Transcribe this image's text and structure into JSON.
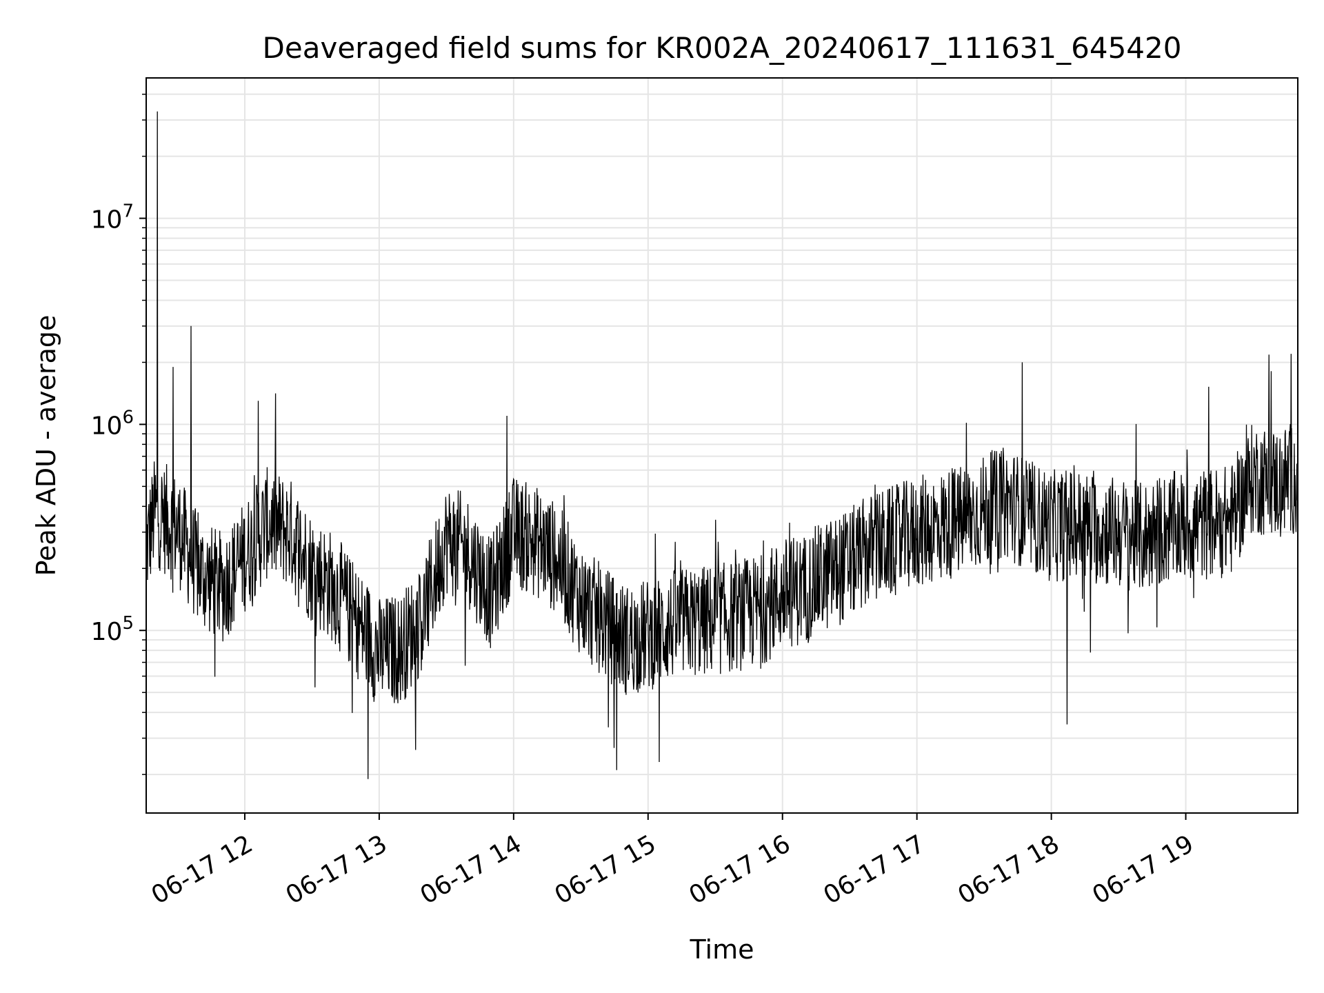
{
  "chart_data": {
    "type": "line",
    "title": "Deaveraged field sums for KR002A_20240617_111631_645420",
    "xlabel": "Time",
    "ylabel": "Peak ADU - average",
    "y_scale": "log",
    "grid": true,
    "xlim": [
      "2024-06-17 11:16",
      "2024-06-17 19:50"
    ],
    "ylim": [
      13000,
      48000000
    ],
    "x_ticks": [
      "06-17 12",
      "06-17 13",
      "06-17 14",
      "06-17 15",
      "06-17 16",
      "06-17 17",
      "06-17 18",
      "06-17 19"
    ],
    "x_tick_times": [
      "2024-06-17 12:00",
      "2024-06-17 13:00",
      "2024-06-17 14:00",
      "2024-06-17 15:00",
      "2024-06-17 16:00",
      "2024-06-17 17:00",
      "2024-06-17 18:00",
      "2024-06-17 19:00"
    ],
    "y_ticks": [
      100000,
      1000000,
      10000000
    ],
    "y_tick_labels": [
      {
        "base": "10",
        "exp": "5"
      },
      {
        "base": "10",
        "exp": "6"
      },
      {
        "base": "10",
        "exp": "7"
      }
    ],
    "line_color": "#000000",
    "grid_color": "#e5e5e5",
    "series": [
      {
        "x": [
          "2024-06-17 11:16",
          "2024-06-17 11:20",
          "2024-06-17 11:30",
          "2024-06-17 11:40",
          "2024-06-17 11:50",
          "2024-06-17 12:00",
          "2024-06-17 12:10",
          "2024-06-17 12:20",
          "2024-06-17 12:30",
          "2024-06-17 12:40",
          "2024-06-17 12:50",
          "2024-06-17 13:00",
          "2024-06-17 13:10",
          "2024-06-17 13:20",
          "2024-06-17 13:30",
          "2024-06-17 13:40",
          "2024-06-17 13:50",
          "2024-06-17 14:00",
          "2024-06-17 14:10",
          "2024-06-17 14:20",
          "2024-06-17 14:30",
          "2024-06-17 14:40",
          "2024-06-17 14:50",
          "2024-06-17 15:00",
          "2024-06-17 15:10",
          "2024-06-17 15:20",
          "2024-06-17 15:30",
          "2024-06-17 15:40",
          "2024-06-17 15:50",
          "2024-06-17 16:00",
          "2024-06-17 16:10",
          "2024-06-17 16:20",
          "2024-06-17 16:30",
          "2024-06-17 16:40",
          "2024-06-17 16:50",
          "2024-06-17 17:00",
          "2024-06-17 17:10",
          "2024-06-17 17:20",
          "2024-06-17 17:30",
          "2024-06-17 17:40",
          "2024-06-17 17:50",
          "2024-06-17 18:00",
          "2024-06-17 18:10",
          "2024-06-17 18:20",
          "2024-06-17 18:30",
          "2024-06-17 18:40",
          "2024-06-17 18:50",
          "2024-06-17 19:00",
          "2024-06-17 19:10",
          "2024-06-17 19:20",
          "2024-06-17 19:30",
          "2024-06-17 19:40",
          "2024-06-17 19:50"
        ],
        "y": [
          250000,
          380000,
          310000,
          190000,
          160000,
          230000,
          330000,
          300000,
          200000,
          160000,
          110000,
          78000,
          82000,
          120000,
          280000,
          240000,
          150000,
          300000,
          270000,
          220000,
          140000,
          110000,
          90000,
          95000,
          105000,
          110000,
          112000,
          118000,
          125000,
          150000,
          160000,
          185000,
          210000,
          250000,
          270000,
          300000,
          320000,
          340000,
          380000,
          420000,
          360000,
          320000,
          330000,
          310000,
          300000,
          280000,
          310000,
          320000,
          330000,
          340000,
          550000,
          520000,
          560000
        ],
        "spikes": [
          {
            "x": "2024-06-17 11:21",
            "y": 33000000
          },
          {
            "x": "2024-06-17 11:28",
            "y": 1900000
          },
          {
            "x": "2024-06-17 11:36",
            "y": 3000000
          },
          {
            "x": "2024-06-17 12:06",
            "y": 1300000
          },
          {
            "x": "2024-06-17 13:57",
            "y": 1100000
          },
          {
            "x": "2024-06-17 17:47",
            "y": 2000000
          },
          {
            "x": "2024-06-17 19:47",
            "y": 2200000
          },
          {
            "x": "2024-06-17 12:55",
            "y": 19000
          },
          {
            "x": "2024-06-17 14:46",
            "y": 21000
          },
          {
            "x": "2024-06-17 15:05",
            "y": 23000
          },
          {
            "x": "2024-06-17 18:07",
            "y": 35000
          }
        ]
      }
    ]
  }
}
